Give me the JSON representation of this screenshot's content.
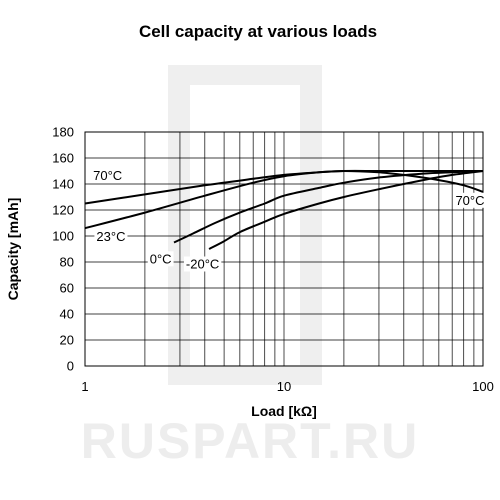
{
  "watermark": {
    "text": "RUSPART.RU",
    "color": "#ededed"
  },
  "chart_data": {
    "type": "line",
    "title": "Cell capacity at various loads",
    "xlabel": "Load [kΩ]",
    "ylabel": "Capacity [mAh]",
    "x_scale": "log",
    "xlim": [
      1,
      100
    ],
    "ylim": [
      0,
      180
    ],
    "x_ticks": [
      1,
      10,
      100
    ],
    "x_tick_labels": [
      "1",
      "10",
      "100"
    ],
    "y_ticks": [
      0,
      20,
      40,
      60,
      80,
      100,
      120,
      140,
      160,
      180
    ],
    "y_tick_labels": [
      "0",
      "20",
      "40",
      "60",
      "80",
      "100",
      "120",
      "140",
      "160",
      "180"
    ],
    "grid": true,
    "line_color": "#000000",
    "series": [
      {
        "name": "70°C",
        "x": [
          1,
          2,
          4,
          7,
          10,
          15,
          20,
          30,
          40,
          60,
          80,
          100
        ],
        "y": [
          125,
          132,
          139,
          144,
          147,
          149,
          150,
          149,
          147,
          143,
          139,
          134
        ]
      },
      {
        "name": "23°C",
        "x": [
          1,
          2,
          4,
          7,
          10,
          15,
          20,
          30,
          50,
          70,
          100
        ],
        "y": [
          106,
          118,
          131,
          141,
          146,
          149,
          150,
          150,
          150,
          150,
          150
        ]
      },
      {
        "name": "0°C",
        "x": [
          2.8,
          3.5,
          4.5,
          6,
          8,
          10,
          15,
          20,
          30,
          50,
          70,
          100
        ],
        "y": [
          95,
          102,
          110,
          118,
          125,
          131,
          137,
          141,
          145,
          148,
          149,
          150
        ]
      },
      {
        "name": "-20°C",
        "x": [
          4.2,
          5,
          6,
          8,
          10,
          15,
          20,
          30,
          50,
          70,
          100
        ],
        "y": [
          90,
          96,
          103,
          111,
          117,
          125,
          130,
          136,
          143,
          147,
          150
        ]
      }
    ],
    "annotations": [
      {
        "text": "70°C",
        "series": "70°C",
        "x": 1.3,
        "y": 143
      },
      {
        "text": "23°C",
        "series": "23°C",
        "x": 1.35,
        "y": 96
      },
      {
        "text": "0°C",
        "series": "0°C",
        "x": 2.4,
        "y": 79
      },
      {
        "text": "-20°C",
        "series": "-20°C",
        "x": 3.9,
        "y": 75
      },
      {
        "text": "70°C",
        "series": "70°C",
        "x": 86,
        "y": 124
      }
    ]
  }
}
